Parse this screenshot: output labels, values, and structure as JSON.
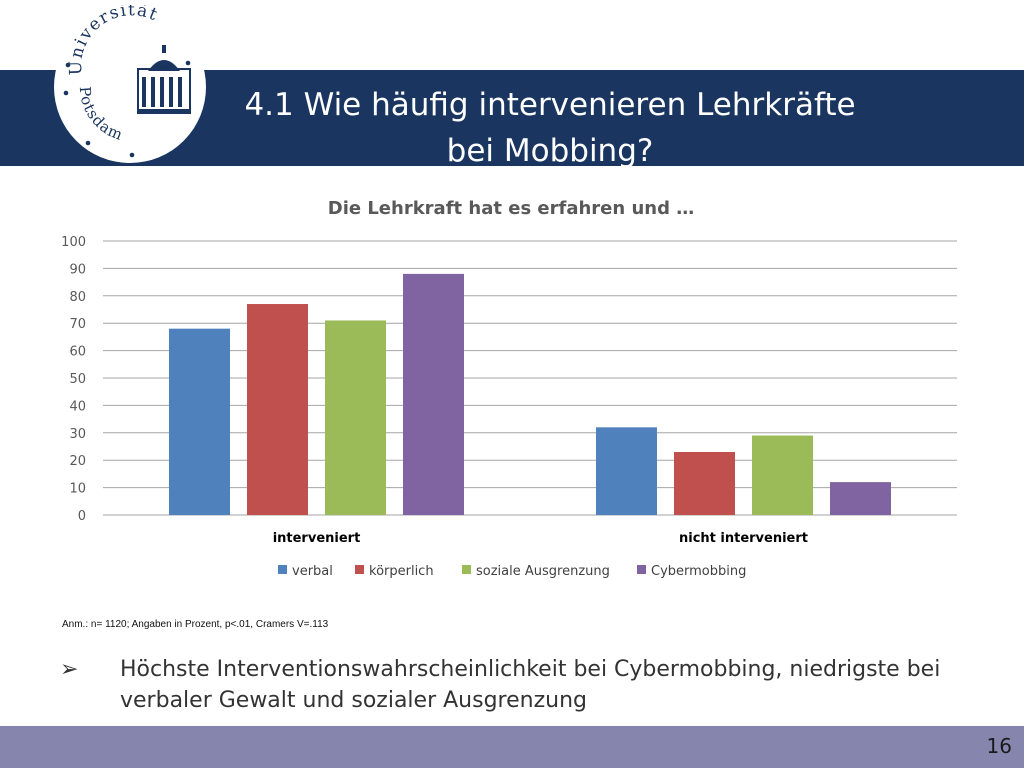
{
  "logo": {
    "top_text": "Universität",
    "bottom_text": "Potsdam"
  },
  "header": {
    "title_line1": "4.1 Wie häufig intervenieren Lehrkräfte",
    "title_line2": "bei Mobbing?"
  },
  "colors": {
    "header_band": "#1a3660",
    "footer_band": "#8585ae",
    "verbal": "#4f81bd",
    "koerperlich": "#c0504d",
    "soziale_ausgrenzung": "#9bbb59",
    "cybermobbing": "#8064a2"
  },
  "chart_data": {
    "type": "bar",
    "title": "Die Lehrkraft hat es erfahren und …",
    "categories": [
      "interveniert",
      "nicht interveniert"
    ],
    "series": [
      {
        "name": "verbal",
        "values": [
          68,
          32
        ],
        "color": "#4f81bd"
      },
      {
        "name": "körperlich",
        "values": [
          77,
          23
        ],
        "color": "#c0504d"
      },
      {
        "name": "soziale Ausgrenzung",
        "values": [
          71,
          29
        ],
        "color": "#9bbb59"
      },
      {
        "name": "Cybermobbing",
        "values": [
          88,
          12
        ],
        "color": "#8064a2"
      }
    ],
    "ylim": [
      0,
      100
    ],
    "yticks": [
      "0",
      "10",
      "20",
      "30",
      "40",
      "50",
      "60",
      "70",
      "80",
      "90",
      "100"
    ],
    "grid": true,
    "legend": "bottom"
  },
  "note": "Anm.: n= 1120; Angaben in Prozent, p<.01, Cramers V=.113",
  "bullet": {
    "symbol": "➢",
    "text": "Höchste Interventionswahrscheinlichkeit bei Cybermobbing, niedrigste bei verbaler Gewalt und sozialer Ausgrenzung"
  },
  "footer": {
    "page_number": "16"
  }
}
